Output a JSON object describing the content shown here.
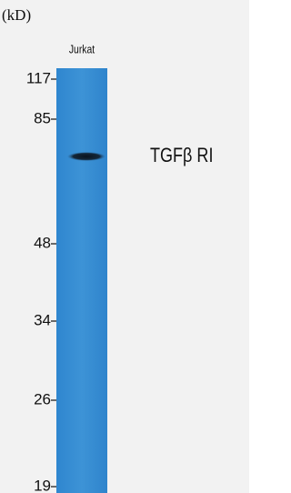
{
  "unit": "(kD)",
  "lane": "Jurkat",
  "band_label": "TGFβ RI",
  "markers": [
    "117",
    "85",
    "48",
    "34",
    "26",
    "19"
  ]
}
